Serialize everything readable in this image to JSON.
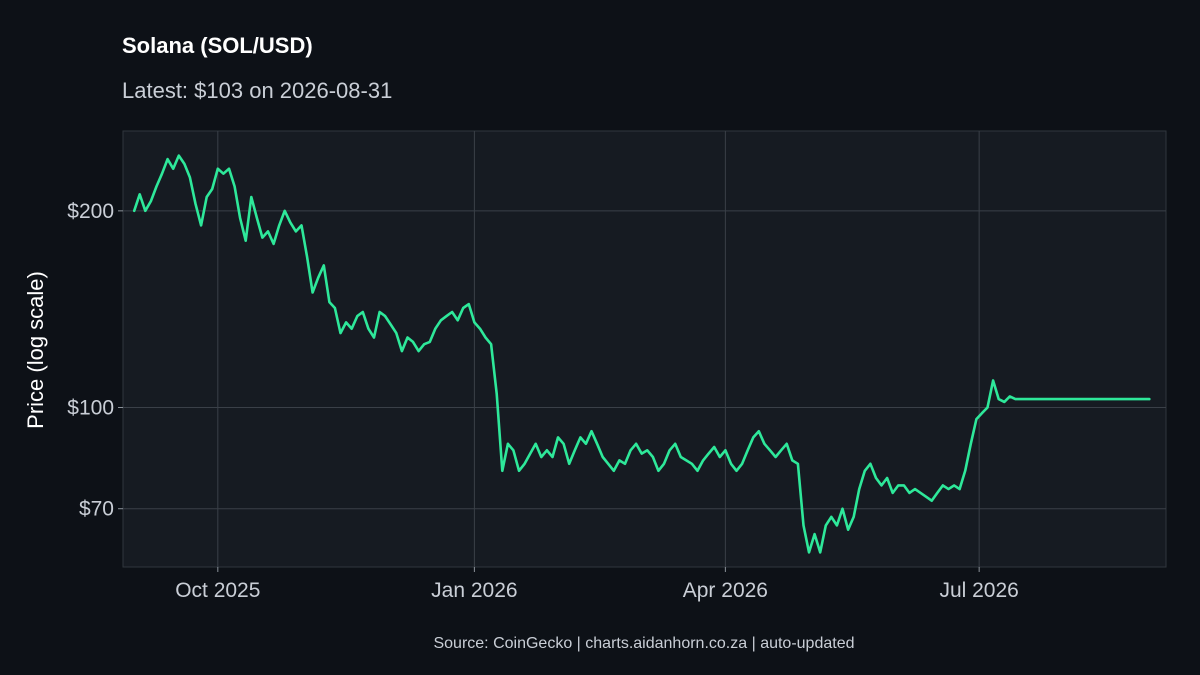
{
  "chart_data": {
    "type": "line",
    "title": "Solana (SOL/USD)",
    "subtitle": "Latest: $103 on 2026-08-31",
    "ylabel": "Price (log scale)",
    "xlabel": "",
    "caption": "Source: CoinGecko | charts.aidanhorn.co.za | auto-updated",
    "y_scale": "log",
    "ylim": [
      57,
      265
    ],
    "xlim": [
      "2025-08-28",
      "2026-09-06"
    ],
    "grid": true,
    "legend": "none",
    "line_color": "#2ee89a",
    "x_ticks": [
      {
        "date": "2025-10-01",
        "label": "Oct 2025"
      },
      {
        "date": "2026-01-01",
        "label": "Jan 2026"
      },
      {
        "date": "2026-04-01",
        "label": "Apr 2026"
      },
      {
        "date": "2026-07-01",
        "label": "Jul 2026"
      }
    ],
    "y_ticks": [
      {
        "value": 70,
        "label": "$70"
      },
      {
        "value": 100,
        "label": "$100"
      },
      {
        "value": 200,
        "label": "$200"
      }
    ],
    "series": [
      {
        "x": [
          "2025-09-01",
          "2025-09-03",
          "2025-09-05",
          "2025-09-07",
          "2025-09-09",
          "2025-09-11",
          "2025-09-13",
          "2025-09-15",
          "2025-09-17",
          "2025-09-19",
          "2025-09-21",
          "2025-09-23",
          "2025-09-25",
          "2025-09-27",
          "2025-09-29",
          "2025-10-01",
          "2025-10-03",
          "2025-10-05",
          "2025-10-07",
          "2025-10-09",
          "2025-10-11",
          "2025-10-13",
          "2025-10-15",
          "2025-10-17",
          "2025-10-19",
          "2025-10-21",
          "2025-10-23",
          "2025-10-25",
          "2025-10-27",
          "2025-10-29",
          "2025-10-31",
          "2025-11-02",
          "2025-11-04",
          "2025-11-06",
          "2025-11-08",
          "2025-11-10",
          "2025-11-12",
          "2025-11-14",
          "2025-11-16",
          "2025-11-18",
          "2025-11-20",
          "2025-11-22",
          "2025-11-24",
          "2025-11-26",
          "2025-11-28",
          "2025-11-30",
          "2025-12-02",
          "2025-12-04",
          "2025-12-06",
          "2025-12-08",
          "2025-12-10",
          "2025-12-12",
          "2025-12-14",
          "2025-12-16",
          "2025-12-18",
          "2025-12-20",
          "2025-12-22",
          "2025-12-24",
          "2025-12-26",
          "2025-12-28",
          "2025-12-30",
          "2026-01-01",
          "2026-01-03",
          "2026-01-05",
          "2026-01-07",
          "2026-01-09",
          "2026-01-11",
          "2026-01-13",
          "2026-01-15",
          "2026-01-17",
          "2026-01-19",
          "2026-01-21",
          "2026-01-23",
          "2026-01-25",
          "2026-01-27",
          "2026-01-29",
          "2026-01-31",
          "2026-02-02",
          "2026-02-04",
          "2026-02-06",
          "2026-02-08",
          "2026-02-10",
          "2026-02-12",
          "2026-02-14",
          "2026-02-16",
          "2026-02-18",
          "2026-02-20",
          "2026-02-22",
          "2026-02-24",
          "2026-02-26",
          "2026-02-28",
          "2026-03-02",
          "2026-03-04",
          "2026-03-06",
          "2026-03-08",
          "2026-03-10",
          "2026-03-12",
          "2026-03-14",
          "2026-03-16",
          "2026-03-18",
          "2026-03-20",
          "2026-03-22",
          "2026-03-24",
          "2026-03-26",
          "2026-03-28",
          "2026-03-30",
          "2026-04-01",
          "2026-04-03",
          "2026-04-05",
          "2026-04-07",
          "2026-04-09",
          "2026-04-11",
          "2026-04-13",
          "2026-04-15",
          "2026-04-17",
          "2026-04-19",
          "2026-04-21",
          "2026-04-23",
          "2026-04-25",
          "2026-04-27",
          "2026-04-29",
          "2026-05-01",
          "2026-05-03",
          "2026-05-05",
          "2026-05-07",
          "2026-05-09",
          "2026-05-11",
          "2026-05-13",
          "2026-05-15",
          "2026-05-17",
          "2026-05-19",
          "2026-05-21",
          "2026-05-23",
          "2026-05-25",
          "2026-05-27",
          "2026-05-29",
          "2026-05-31",
          "2026-06-02",
          "2026-06-04",
          "2026-06-06",
          "2026-06-08",
          "2026-06-10",
          "2026-06-12",
          "2026-06-14",
          "2026-06-16",
          "2026-06-18",
          "2026-06-20",
          "2026-06-22",
          "2026-06-24",
          "2026-06-26",
          "2026-06-28",
          "2026-06-30",
          "2026-07-02",
          "2026-07-04",
          "2026-07-06",
          "2026-07-08",
          "2026-07-10",
          "2026-07-12",
          "2026-07-14",
          "2026-07-16",
          "2026-07-18",
          "2026-07-20",
          "2026-07-22",
          "2026-07-24",
          "2026-07-26",
          "2026-07-28",
          "2026-07-30",
          "2026-08-01",
          "2026-08-03",
          "2026-08-05",
          "2026-08-07",
          "2026-08-09",
          "2026-08-11",
          "2026-08-13",
          "2026-08-15",
          "2026-08-17",
          "2026-08-19",
          "2026-08-21",
          "2026-08-23",
          "2026-08-25",
          "2026-08-27",
          "2026-08-29",
          "2026-08-31"
        ],
        "y": [
          200,
          212,
          200,
          207,
          218,
          228,
          240,
          232,
          243,
          236,
          225,
          205,
          190,
          210,
          216,
          232,
          228,
          232,
          218,
          195,
          180,
          210,
          195,
          182,
          186,
          178,
          190,
          200,
          192,
          186,
          190,
          170,
          150,
          158,
          165,
          145,
          142,
          130,
          135,
          132,
          138,
          140,
          132,
          128,
          140,
          138,
          134,
          130,
          122,
          128,
          126,
          122,
          125,
          126,
          132,
          136,
          138,
          140,
          136,
          142,
          144,
          135,
          132,
          128,
          125,
          105,
          80,
          88,
          86,
          80,
          82,
          85,
          88,
          84,
          86,
          84,
          90,
          88,
          82,
          86,
          90,
          88,
          92,
          88,
          84,
          82,
          80,
          83,
          82,
          86,
          88,
          85,
          86,
          84,
          80,
          82,
          86,
          88,
          84,
          83,
          82,
          80,
          83,
          85,
          87,
          84,
          86,
          82,
          80,
          82,
          86,
          90,
          92,
          88,
          86,
          84,
          86,
          88,
          83,
          82,
          66,
          60,
          64,
          60,
          66,
          68,
          66,
          70,
          65,
          68,
          75,
          80,
          82,
          78,
          76,
          78,
          74,
          76,
          76,
          74,
          75,
          74,
          73,
          72,
          74,
          76,
          75,
          76,
          75,
          80,
          88,
          96,
          98,
          100,
          110,
          103,
          102,
          104,
          103,
          103,
          103,
          103,
          103,
          103,
          103,
          103,
          103,
          103,
          103,
          103,
          103,
          103,
          103,
          103,
          103,
          103,
          103,
          103,
          103,
          103,
          103,
          103,
          103
        ]
      }
    ]
  }
}
